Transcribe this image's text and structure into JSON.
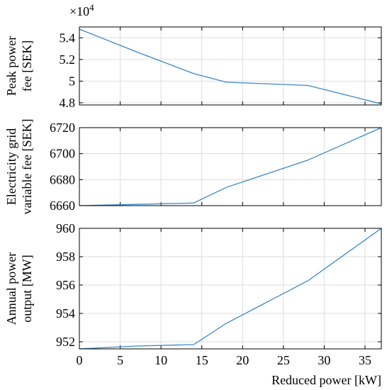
{
  "chart_data": {
    "type": "line",
    "x": [
      0,
      7,
      14,
      18,
      28,
      37
    ],
    "xlabel": "Reduced power [kW]",
    "xlim": [
      0,
      37
    ],
    "xticks": [
      0,
      5,
      10,
      15,
      20,
      25,
      30,
      35
    ],
    "grid": true,
    "line_color": "#3a87c8",
    "panels": [
      {
        "ylabel": [
          "Peak power",
          "fee [SEK]"
        ],
        "ylim": [
          4.78,
          5.5
        ],
        "yticks": [
          4.8,
          5,
          5.2,
          5.4
        ],
        "ytick_labels": [
          "4.8",
          "5",
          "5.2",
          "5.4"
        ],
        "multiplier": "×10",
        "multiplier_exp": "4",
        "y": [
          5.48,
          5.27,
          5.07,
          4.99,
          4.96,
          4.79
        ]
      },
      {
        "ylabel": [
          "Electricity grid",
          "variable fee [SEK]"
        ],
        "ylim": [
          6660,
          6720
        ],
        "yticks": [
          6660,
          6680,
          6700,
          6720
        ],
        "ytick_labels": [
          "6660",
          "6680",
          "6700",
          "6720"
        ],
        "y": [
          6660,
          6661,
          6662,
          6674,
          6695,
          6720
        ]
      },
      {
        "ylabel": [
          "Annual power",
          "output [MW]"
        ],
        "ylim": [
          951.5,
          960
        ],
        "yticks": [
          952,
          954,
          956,
          958,
          960
        ],
        "ytick_labels": [
          "952",
          "954",
          "956",
          "958",
          "960"
        ],
        "y": [
          951.5,
          951.7,
          951.8,
          953.3,
          956.3,
          960
        ]
      }
    ]
  }
}
